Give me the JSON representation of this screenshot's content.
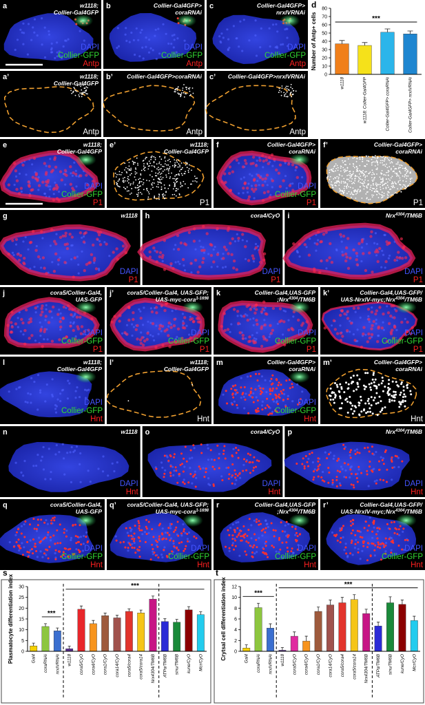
{
  "panels": [
    {
      "label": "a",
      "genotype": [
        [
          "w1118;"
        ],
        [
          "Collier-Gal4GFP"
        ]
      ],
      "stains": [
        {
          "text": "DAPI",
          "color": "#4455ff"
        },
        {
          "text": "Collier-GFP",
          "color": "#33dd33"
        },
        {
          "text": "Antp",
          "color": "#ff2020"
        }
      ]
    },
    {
      "label": "b",
      "genotype": [
        [
          "Collier-Gal4GFP>"
        ],
        [
          "coraRNAi"
        ]
      ],
      "stains": [
        {
          "text": "DAPI",
          "color": "#4455ff"
        },
        {
          "text": "Collier-GFP",
          "color": "#33dd33"
        },
        {
          "text": "Antp",
          "color": "#ff2020"
        }
      ]
    },
    {
      "label": "c",
      "genotype": [
        [
          "Collier-Gal4GFP>"
        ],
        [
          "nrxIVRNAi"
        ]
      ],
      "stains": [
        {
          "text": "DAPI",
          "color": "#4455ff"
        },
        {
          "text": "Collier-GFP",
          "color": "#33dd33"
        },
        {
          "text": "Antp",
          "color": "#ff2020"
        }
      ]
    },
    {
      "label": "a’",
      "genotype": [
        [
          "w1118;"
        ],
        [
          "Collier-Gal4GFP"
        ]
      ],
      "stains": [
        {
          "text": "Antp",
          "color": "#ffffff"
        }
      ]
    },
    {
      "label": "b’",
      "genotype": [
        [
          "Collier-Gal4GFP>coraRNAi"
        ]
      ],
      "stains": [
        {
          "text": "Antp",
          "color": "#ffffff"
        }
      ]
    },
    {
      "label": "c’",
      "genotype": [
        [
          "Collier-Gal4GFP>nrxIVRNAi"
        ]
      ],
      "stains": [
        {
          "text": "Antp",
          "color": "#ffffff"
        }
      ]
    },
    {
      "label": "e",
      "genotype": [
        [
          "w1118;"
        ],
        [
          "Collier-Gal4GFP"
        ]
      ],
      "stains": [
        {
          "text": "DAPI",
          "color": "#4455ff"
        },
        {
          "text": "Collier-GFP",
          "color": "#33dd33"
        },
        {
          "text": "P1",
          "color": "#ff2020"
        }
      ]
    },
    {
      "label": "e’",
      "genotype": [
        [
          "w1118;"
        ],
        [
          "Collier-Gal4GFP"
        ]
      ],
      "stains": [
        {
          "text": "P1",
          "color": "#ffffff"
        }
      ]
    },
    {
      "label": "f",
      "genotype": [
        [
          "Collier-Gal4GFP>"
        ],
        [
          "coraRNAi"
        ]
      ],
      "stains": [
        {
          "text": "DAPI",
          "color": "#4455ff"
        },
        {
          "text": "Collier-GFP",
          "color": "#33dd33"
        },
        {
          "text": "P1",
          "color": "#ff2020"
        }
      ]
    },
    {
      "label": "f’",
      "genotype": [
        [
          "Collier-Gal4GFP>"
        ],
        [
          "coraRNAi"
        ]
      ],
      "stains": [
        {
          "text": "P1",
          "color": "#ffffff"
        }
      ]
    },
    {
      "label": "g",
      "genotype": [
        [
          "w1118"
        ]
      ],
      "stains": [
        {
          "text": "DAPI",
          "color": "#4455ff"
        },
        {
          "text": "P1",
          "color": "#ff2020"
        }
      ]
    },
    {
      "label": "h",
      "genotype": [
        [
          "cora4/CyO"
        ]
      ],
      "stains": [
        {
          "text": "DAPI",
          "color": "#4455ff"
        },
        {
          "text": "P1",
          "color": "#ff2020"
        }
      ]
    },
    {
      "label": "i",
      "genotype": [
        [
          "Nrx",
          "4304",
          "/TM6B"
        ]
      ],
      "stains": [
        {
          "text": "DAPI",
          "color": "#4455ff"
        },
        {
          "text": "P1",
          "color": "#ff2020"
        }
      ]
    },
    {
      "label": "j",
      "genotype": [
        [
          "cora5/Collier-Gal4,"
        ],
        [
          "UAS-GFP"
        ]
      ],
      "stains": [
        {
          "text": "DAPI",
          "color": "#4455ff"
        },
        {
          "text": "Collier-GFP",
          "color": "#33dd33"
        },
        {
          "text": "P1",
          "color": "#ff2020"
        }
      ]
    },
    {
      "label": "j’",
      "genotype": [
        [
          "cora5/Collier-Gal4, UAS-GFP;"
        ],
        [
          "UAS-myc-cora",
          "1-1698"
        ]
      ],
      "stains": [
        {
          "text": "DAPI",
          "color": "#4455ff"
        },
        {
          "text": "Collier-GFP",
          "color": "#33dd33"
        },
        {
          "text": "P1",
          "color": "#ff2020"
        }
      ]
    },
    {
      "label": "k",
      "genotype": [
        [
          "Collier-Gal4,UAS-GFP"
        ],
        [
          ";Nrx",
          "4304",
          "/TM6B"
        ]
      ],
      "stains": [
        {
          "text": "DAPI",
          "color": "#4455ff"
        },
        {
          "text": "Collier-GFP",
          "color": "#33dd33"
        },
        {
          "text": "P1",
          "color": "#ff2020"
        }
      ]
    },
    {
      "label": "k’",
      "genotype": [
        [
          "Collier-Gal4,UAS-GFP/"
        ],
        [
          "UAS-NrxIV-myc;Nrx",
          "4304",
          "/TM6B"
        ]
      ],
      "stains": [
        {
          "text": "DAPI",
          "color": "#4455ff"
        },
        {
          "text": "Collier-GFP",
          "color": "#33dd33"
        },
        {
          "text": "P1",
          "color": "#ff2020"
        }
      ]
    },
    {
      "label": "l",
      "genotype": [
        [
          "w1118;"
        ],
        [
          "Collier-Gal4GFP"
        ]
      ],
      "stains": [
        {
          "text": "DAPI",
          "color": "#4455ff"
        },
        {
          "text": "Collier-GFP",
          "color": "#33dd33"
        },
        {
          "text": "Hnt",
          "color": "#ff2020"
        }
      ]
    },
    {
      "label": "l’",
      "genotype": [
        [
          "w1118;"
        ],
        [
          "Collier-Gal4GFP"
        ]
      ],
      "stains": [
        {
          "text": "Hnt",
          "color": "#ffffff"
        }
      ]
    },
    {
      "label": "m",
      "genotype": [
        [
          "Collier-Gal4GFP>"
        ],
        [
          "coraRNAi"
        ]
      ],
      "stains": [
        {
          "text": "DAPI",
          "color": "#4455ff"
        },
        {
          "text": "Collier-GFP",
          "color": "#33dd33"
        },
        {
          "text": "Hnt",
          "color": "#ff2020"
        }
      ]
    },
    {
      "label": "m’",
      "genotype": [
        [
          "Collier-Gal4GFP>"
        ],
        [
          "coraRNAi"
        ]
      ],
      "stains": [
        {
          "text": "Hnt",
          "color": "#ffffff"
        }
      ]
    },
    {
      "label": "n",
      "genotype": [
        [
          "w1118"
        ]
      ],
      "stains": [
        {
          "text": "DAPI",
          "color": "#4455ff"
        },
        {
          "text": "Hnt",
          "color": "#ff2020"
        }
      ]
    },
    {
      "label": "o",
      "genotype": [
        [
          "cora4/CyO"
        ]
      ],
      "stains": [
        {
          "text": "DAPI",
          "color": "#4455ff"
        },
        {
          "text": "Hnt",
          "color": "#ff2020"
        }
      ]
    },
    {
      "label": "p",
      "genotype": [
        [
          "Nrx",
          "4304",
          "/TM6B"
        ]
      ],
      "stains": [
        {
          "text": "DAPI",
          "color": "#4455ff"
        },
        {
          "text": "Hnt",
          "color": "#ff2020"
        }
      ]
    },
    {
      "label": "q",
      "genotype": [
        [
          "cora5/Collier-Gal4,"
        ],
        [
          "UAS-GFP"
        ]
      ],
      "stains": [
        {
          "text": "DAPI",
          "color": "#4455ff"
        },
        {
          "text": "Collier-GFP",
          "color": "#33dd33"
        },
        {
          "text": "Hnt",
          "color": "#ff2020"
        }
      ]
    },
    {
      "label": "q’",
      "genotype": [
        [
          "cora5/Collier-Gal4, UAS-GFP;"
        ],
        [
          "UAS-myc-cora",
          "1-1698"
        ]
      ],
      "stains": [
        {
          "text": "DAPI",
          "color": "#4455ff"
        },
        {
          "text": "Collier-GFP",
          "color": "#33dd33"
        },
        {
          "text": "Hnt",
          "color": "#ff2020"
        }
      ]
    },
    {
      "label": "r",
      "genotype": [
        [
          "Collier-Gal4,UAS-GFP"
        ],
        [
          ";Nrx",
          "4304",
          "/TM6B"
        ]
      ],
      "stains": [
        {
          "text": "DAPI",
          "color": "#4455ff"
        },
        {
          "text": "Collier-GFP",
          "color": "#33dd33"
        },
        {
          "text": "Hnt",
          "color": "#ff2020"
        }
      ]
    },
    {
      "label": "r’",
      "genotype": [
        [
          "Collier-Gal4,UAS-GFP/"
        ],
        [
          "UAS-NrxIV-myc;Nrx",
          "4304",
          "/TM6B"
        ]
      ],
      "stains": [
        {
          "text": "DAPI",
          "color": "#4455ff"
        },
        {
          "text": "Collier-GFP",
          "color": "#33dd33"
        },
        {
          "text": "Hnt",
          "color": "#ff2020"
        }
      ]
    }
  ],
  "chart_data": [
    {
      "type": "bar",
      "letter": "d",
      "ylabel": "Number of Antp+ cells",
      "categories": [
        "w1118",
        "w1118; Collier-Gal4GFP",
        "Collier-Gal4GFP> coraRNAi",
        "Collier-Gal4GFP> nrxIVRNAi"
      ],
      "values": [
        37,
        35,
        51,
        49
      ],
      "errors": [
        4,
        3.5,
        4,
        3.5
      ],
      "colors": [
        "#f07f1a",
        "#f5e11a",
        "#2bb5ea",
        "#1f86d0"
      ],
      "ylim": [
        0,
        80
      ],
      "yticks": [
        0,
        10,
        20,
        30,
        40,
        50,
        60,
        70,
        80
      ],
      "annotations": [
        {
          "text": "***",
          "from": 0,
          "to": 3
        }
      ],
      "separators_after": []
    },
    {
      "type": "bar",
      "letter": "s",
      "ylabel": "Plasmatocyte differentiation index",
      "categories": [
        "Gal4",
        "coraRNAi",
        "nrxIVRNAi",
        "w1118",
        "cora5/CyO",
        "cora4/CyO",
        "cora1/CyO",
        "cora14/CyO",
        "cora5/cora4",
        "cora5/cora14",
        "Nrx4304/TM6B",
        "ATPα/TM6B",
        "sinu/TM6B",
        "kune/CyO",
        "Mcr/CyO"
      ],
      "values": [
        2.5,
        11.5,
        9.5,
        1.2,
        19.5,
        12.8,
        16.5,
        15.5,
        18.5,
        17.8,
        24.2,
        13.8,
        13.5,
        19.2,
        17.0
      ],
      "errors": [
        1.3,
        1.3,
        1.3,
        1.2,
        1.5,
        1.5,
        1.2,
        1.2,
        1.2,
        1.3,
        1.4,
        1.3,
        1.3,
        1.5,
        1.3
      ],
      "colors": [
        "#f5d000",
        "#8dc63f",
        "#3b6fd0",
        "#5a2d91",
        "#e8262a",
        "#f7941d",
        "#9e5a3c",
        "#a0524d",
        "#e2342c",
        "#f5c518",
        "#c71585",
        "#2b2bd6",
        "#1a8a3a",
        "#8b0000",
        "#22ccee"
      ],
      "ylim": [
        0,
        30
      ],
      "yticks": [
        0,
        5,
        10,
        15,
        20,
        25,
        30
      ],
      "annotations": [
        {
          "text": "***",
          "from": 1,
          "to": 2
        },
        {
          "text": "***",
          "from": 3,
          "to": 14
        }
      ],
      "separators_after": [
        2,
        10
      ]
    },
    {
      "type": "bar",
      "letter": "t",
      "ylabel": "Crytsal cell differentiation index",
      "categories": [
        "Gal4",
        "coraRNAi",
        "nrxIVRNAi",
        "w1118",
        "cora5/CyO",
        "cora4/CyO",
        "cora1/CyO",
        "cora14/CyO",
        "cora5/cora4",
        "cora5/cora14",
        "Nrx4304/TM6B",
        "ATPα/TM6B",
        "sinu/TM6B",
        "kune/CyO",
        "Mcr/CyO"
      ],
      "values": [
        0.6,
        8.1,
        4.3,
        0.2,
        2.8,
        1.9,
        7.4,
        8.6,
        9.0,
        9.6,
        7.0,
        4.7,
        9.0,
        8.7,
        5.7
      ],
      "errors": [
        0.6,
        0.8,
        0.8,
        0.5,
        0.8,
        0.9,
        0.8,
        0.9,
        1.0,
        0.9,
        0.8,
        0.7,
        1.1,
        0.8,
        0.8
      ],
      "colors": [
        "#f5d000",
        "#8dc63f",
        "#3b6fd0",
        "#5a2d91",
        "#e02aa0",
        "#f7941d",
        "#9e5a3c",
        "#a0524d",
        "#e2342c",
        "#f5c518",
        "#c71585",
        "#2b2bd6",
        "#1a8a3a",
        "#8b0000",
        "#22ccee"
      ],
      "ylim": [
        0,
        12
      ],
      "yticks": [
        0,
        2,
        4,
        6,
        8,
        10,
        12
      ],
      "annotations": [
        {
          "text": "***",
          "from": 0,
          "to": 2
        },
        {
          "text": "***",
          "from": 3,
          "to": 14
        }
      ],
      "separators_after": [
        2,
        10
      ]
    }
  ]
}
